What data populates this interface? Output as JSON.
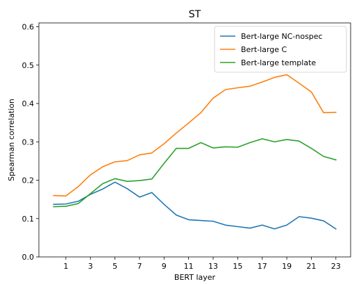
{
  "chart_data": {
    "type": "line",
    "title": "ST",
    "xlabel": "BERT layer",
    "ylabel": "Spearman correlation",
    "xlim": [
      -1.2,
      24.2
    ],
    "ylim": [
      0.0,
      0.61
    ],
    "xticks": [
      1,
      3,
      5,
      7,
      9,
      11,
      13,
      15,
      17,
      19,
      21,
      23
    ],
    "yticks": [
      0.0,
      0.1,
      0.2,
      0.3,
      0.4,
      0.5,
      0.6
    ],
    "ytick_labels": [
      "0.0",
      "0.1",
      "0.2",
      "0.3",
      "0.4",
      "0.5",
      "0.6"
    ],
    "grid": false,
    "legend_position": "top-right",
    "x": [
      0,
      1,
      2,
      3,
      4,
      5,
      6,
      7,
      8,
      9,
      10,
      11,
      12,
      13,
      14,
      15,
      16,
      17,
      18,
      19,
      20,
      21,
      22,
      23
    ],
    "series": [
      {
        "name": "Bert-large NC-nospec",
        "color": "#1f77b4",
        "values": [
          0.137,
          0.138,
          0.145,
          0.163,
          0.177,
          0.195,
          0.178,
          0.156,
          0.168,
          0.137,
          0.109,
          0.097,
          0.095,
          0.093,
          0.083,
          0.079,
          0.075,
          0.083,
          0.073,
          0.083,
          0.105,
          0.101,
          0.094,
          0.073
        ]
      },
      {
        "name": "Bert-large C",
        "color": "#ff7f0e",
        "values": [
          0.16,
          0.159,
          0.183,
          0.214,
          0.235,
          0.248,
          0.251,
          0.266,
          0.271,
          0.295,
          0.323,
          0.349,
          0.376,
          0.414,
          0.436,
          0.441,
          0.445,
          0.456,
          0.468,
          0.475,
          0.453,
          0.43,
          0.376,
          0.377
        ]
      },
      {
        "name": "Bert-large template",
        "color": "#2ca02c",
        "values": [
          0.131,
          0.132,
          0.139,
          0.165,
          0.191,
          0.204,
          0.197,
          0.199,
          0.203,
          0.244,
          0.283,
          0.283,
          0.298,
          0.284,
          0.287,
          0.286,
          0.298,
          0.308,
          0.3,
          0.306,
          0.302,
          0.283,
          0.262,
          0.253
        ]
      }
    ]
  }
}
